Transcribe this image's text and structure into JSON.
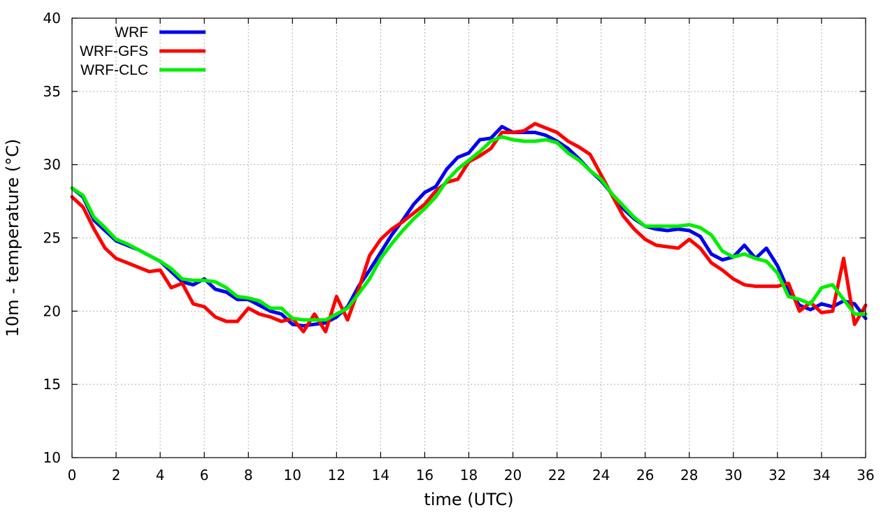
{
  "chart_data": {
    "type": "line",
    "xlabel": "time (UTC)",
    "ylabel": "10m - temperature (°C)",
    "xlim": [
      0,
      36
    ],
    "ylim": [
      10,
      40
    ],
    "xticks": [
      0,
      2,
      4,
      6,
      8,
      10,
      12,
      14,
      16,
      18,
      20,
      22,
      24,
      26,
      28,
      30,
      32,
      34,
      36
    ],
    "yticks": [
      10,
      15,
      20,
      25,
      30,
      35,
      40
    ],
    "grid": true,
    "legend_position": "top-left",
    "series": [
      {
        "name": "WRF",
        "color": "#0000ee",
        "x": [
          0,
          0.5,
          1,
          1.5,
          2,
          2.5,
          3,
          3.5,
          4,
          4.5,
          5,
          5.5,
          6,
          6.5,
          7,
          7.5,
          8,
          8.5,
          9,
          9.5,
          10,
          10.5,
          11,
          11.5,
          12,
          12.5,
          13,
          13.5,
          14,
          14.5,
          15,
          15.5,
          16,
          16.5,
          17,
          17.5,
          18,
          18.5,
          19,
          19.5,
          20,
          20.5,
          21,
          21.5,
          22,
          22.5,
          23,
          23.5,
          24,
          24.5,
          25,
          25.5,
          26,
          26.5,
          27,
          27.5,
          28,
          28.5,
          29,
          29.5,
          30,
          30.5,
          31,
          31.5,
          32,
          32.5,
          33,
          33.5,
          34,
          34.5,
          35,
          35.5,
          36
        ],
        "values": [
          28.4,
          27.8,
          26.2,
          25.5,
          24.8,
          24.5,
          24.2,
          23.8,
          23.4,
          22.7,
          22.0,
          21.8,
          22.2,
          21.5,
          21.3,
          20.8,
          20.8,
          20.4,
          20.0,
          19.8,
          19.1,
          19.0,
          19.1,
          19.2,
          19.6,
          20.3,
          21.7,
          22.8,
          24.0,
          25.2,
          26.2,
          27.3,
          28.1,
          28.5,
          29.7,
          30.5,
          30.8,
          31.7,
          31.8,
          32.6,
          32.2,
          32.2,
          32.2,
          32.0,
          31.6,
          31.1,
          30.4,
          29.6,
          28.9,
          28.0,
          27.0,
          26.3,
          25.8,
          25.6,
          25.5,
          25.6,
          25.5,
          25.1,
          23.9,
          23.5,
          23.7,
          24.5,
          23.6,
          24.3,
          23.1,
          21.4,
          20.4,
          20.1,
          20.5,
          20.3,
          20.7,
          20.5,
          19.5
        ]
      },
      {
        "name": "WRF-GFS",
        "color": "#ff0000",
        "x": [
          0,
          0.5,
          1,
          1.5,
          2,
          2.5,
          3,
          3.5,
          4,
          4.5,
          5,
          5.5,
          6,
          6.5,
          7,
          7.5,
          8,
          8.5,
          9,
          9.5,
          10,
          10.5,
          11,
          11.5,
          12,
          12.5,
          13,
          13.5,
          14,
          14.5,
          15,
          15.5,
          16,
          16.5,
          17,
          17.5,
          18,
          18.5,
          19,
          19.5,
          20,
          20.5,
          21,
          21.5,
          22,
          22.5,
          23,
          23.5,
          24,
          24.5,
          25,
          25.5,
          26,
          26.5,
          27,
          27.5,
          28,
          28.5,
          29,
          29.5,
          30,
          30.5,
          31,
          31.5,
          32,
          32.5,
          33,
          33.5,
          34,
          34.5,
          35,
          35.5,
          36
        ],
        "values": [
          27.8,
          27.1,
          25.6,
          24.3,
          23.6,
          23.3,
          23.0,
          22.7,
          22.8,
          21.6,
          21.9,
          20.5,
          20.3,
          19.6,
          19.3,
          19.3,
          20.2,
          19.8,
          19.6,
          19.3,
          19.5,
          18.6,
          19.8,
          18.6,
          21.0,
          19.4,
          21.5,
          23.8,
          24.9,
          25.6,
          26.1,
          26.7,
          27.3,
          28.2,
          28.8,
          29.0,
          30.2,
          30.6,
          31.1,
          32.2,
          32.2,
          32.3,
          32.8,
          32.5,
          32.2,
          31.6,
          31.2,
          30.7,
          29.3,
          27.9,
          26.5,
          25.6,
          24.9,
          24.5,
          24.4,
          24.3,
          24.9,
          24.3,
          23.3,
          22.8,
          22.2,
          21.8,
          21.7,
          21.7,
          21.7,
          21.9,
          20.0,
          20.6,
          19.9,
          20.0,
          23.6,
          19.1,
          20.4
        ]
      },
      {
        "name": "WRF-CLC",
        "color": "#00ee00",
        "x": [
          0,
          0.5,
          1,
          1.5,
          2,
          2.5,
          3,
          3.5,
          4,
          4.5,
          5,
          5.5,
          6,
          6.5,
          7,
          7.5,
          8,
          8.5,
          9,
          9.5,
          10,
          10.5,
          11,
          11.5,
          12,
          12.5,
          13,
          13.5,
          14,
          14.5,
          15,
          15.5,
          16,
          16.5,
          17,
          17.5,
          18,
          18.5,
          19,
          19.5,
          20,
          20.5,
          21,
          21.5,
          22,
          22.5,
          23,
          23.5,
          24,
          24.5,
          25,
          25.5,
          26,
          26.5,
          27,
          27.5,
          28,
          28.5,
          29,
          29.5,
          30,
          30.5,
          31,
          31.5,
          32,
          32.5,
          33,
          33.5,
          34,
          34.5,
          35,
          35.5,
          36
        ],
        "values": [
          28.4,
          27.9,
          26.4,
          25.7,
          24.9,
          24.6,
          24.2,
          23.8,
          23.4,
          22.9,
          22.2,
          22.1,
          22.1,
          22.0,
          21.6,
          21.0,
          20.9,
          20.7,
          20.2,
          20.2,
          19.5,
          19.4,
          19.4,
          19.4,
          19.8,
          20.2,
          21.2,
          22.2,
          23.6,
          24.6,
          25.5,
          26.3,
          27.0,
          27.8,
          28.9,
          29.7,
          30.3,
          30.9,
          31.6,
          31.9,
          31.7,
          31.6,
          31.6,
          31.7,
          31.5,
          30.8,
          30.3,
          29.6,
          29.0,
          28.0,
          27.2,
          26.4,
          25.8,
          25.8,
          25.8,
          25.8,
          25.9,
          25.7,
          25.2,
          24.1,
          23.7,
          23.9,
          23.6,
          23.4,
          22.6,
          21.0,
          20.8,
          20.5,
          21.6,
          21.8,
          20.8,
          19.8,
          19.8
        ]
      }
    ]
  }
}
